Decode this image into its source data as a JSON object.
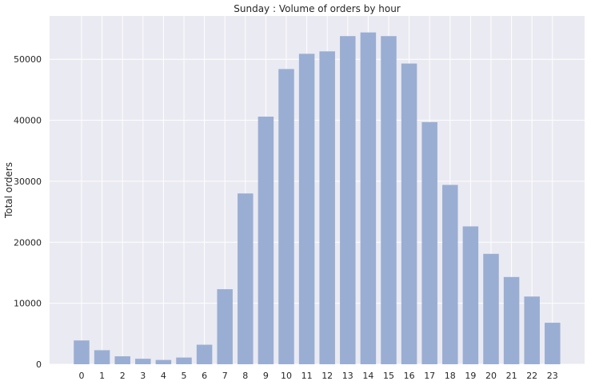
{
  "chart_data": {
    "type": "bar",
    "title": "Sunday : Volume of orders by hour",
    "xlabel": "",
    "ylabel": "Total orders",
    "categories": [
      "0",
      "1",
      "2",
      "3",
      "4",
      "5",
      "6",
      "7",
      "8",
      "9",
      "10",
      "11",
      "12",
      "13",
      "14",
      "15",
      "16",
      "17",
      "18",
      "19",
      "20",
      "21",
      "22",
      "23"
    ],
    "values": [
      3900,
      2300,
      1300,
      900,
      700,
      1100,
      3200,
      12300,
      28000,
      40600,
      48400,
      50900,
      51300,
      53800,
      54400,
      53800,
      49300,
      39700,
      29400,
      22600,
      18100,
      14300,
      11100,
      6800
    ],
    "yticks": [
      0,
      10000,
      20000,
      30000,
      40000,
      50000
    ],
    "ylim": [
      0,
      57100
    ],
    "grid": true,
    "colors": {
      "bar": "#9aaed3",
      "plot_background": "#eaeaf2",
      "grid": "#ffffff",
      "text": "#262626"
    }
  }
}
